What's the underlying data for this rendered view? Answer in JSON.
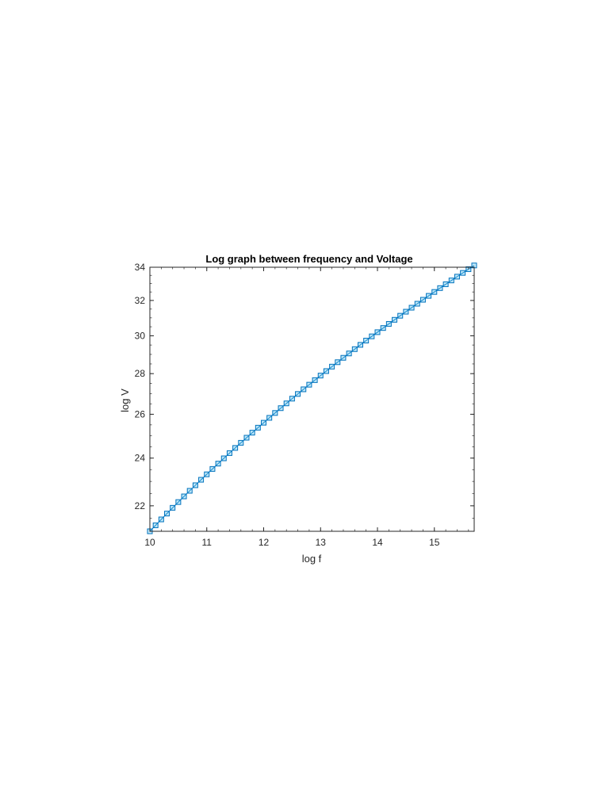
{
  "chart_data": {
    "type": "scatter",
    "title": "Log graph between frequency and Voltage",
    "xlabel": "log f",
    "ylabel": "log V",
    "xlim": [
      10,
      15.7
    ],
    "ylim": [
      21,
      34
    ],
    "y_scale": "log",
    "grid": false,
    "box": true,
    "marker": "square",
    "line_color": "#0072bd",
    "marker_fill": "#4dbeee",
    "xticks": [
      10,
      11,
      12,
      13,
      14,
      15
    ],
    "xtick_labels": [
      "10",
      "11",
      "12",
      "13",
      "14",
      "15"
    ],
    "yticks": [
      22,
      24,
      26,
      28,
      30,
      32,
      34
    ],
    "ytick_labels": [
      "22",
      "24",
      "26",
      "28",
      "30",
      "32",
      "34"
    ],
    "series": [
      {
        "x": [
          10.0,
          10.1,
          10.2,
          10.3,
          10.4,
          10.5,
          10.6,
          10.7,
          10.8,
          10.9,
          11.0,
          11.1,
          11.2,
          11.3,
          11.4,
          11.5,
          11.6,
          11.7,
          11.8,
          11.9,
          12.0,
          12.1,
          12.2,
          12.3,
          12.4,
          12.5,
          12.6,
          12.7,
          12.8,
          12.9,
          13.0,
          13.1,
          13.2,
          13.3,
          13.4,
          13.5,
          13.6,
          13.7,
          13.8,
          13.9,
          14.0,
          14.1,
          14.2,
          14.3,
          14.4,
          14.5,
          14.6,
          14.7,
          14.8,
          14.9,
          15.0,
          15.1,
          15.2,
          15.3,
          15.4,
          15.5,
          15.6,
          15.7
        ],
        "y": [
          21.0,
          21.23,
          21.46,
          21.69,
          21.92,
          22.15,
          22.38,
          22.61,
          22.84,
          23.07,
          23.3,
          23.53,
          23.76,
          23.99,
          24.22,
          24.45,
          24.68,
          24.91,
          25.14,
          25.37,
          25.6,
          25.83,
          26.06,
          26.29,
          26.52,
          26.75,
          26.98,
          27.21,
          27.44,
          27.67,
          27.9,
          28.13,
          28.36,
          28.59,
          28.82,
          29.05,
          29.28,
          29.51,
          29.74,
          29.97,
          30.2,
          30.43,
          30.66,
          30.89,
          31.12,
          31.35,
          31.58,
          31.81,
          32.04,
          32.27,
          32.5,
          32.73,
          32.96,
          33.19,
          33.42,
          33.65,
          33.88,
          34.11
        ]
      }
    ]
  }
}
